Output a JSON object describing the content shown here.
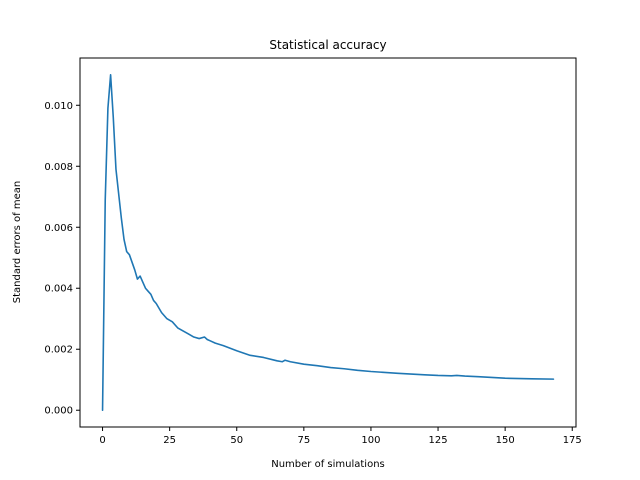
{
  "chart_data": {
    "type": "line",
    "title": "Statistical accuracy",
    "xlabel": "Number of simulations",
    "ylabel": "Standard errors of mean",
    "xlim": [
      -8.4,
      176.4
    ],
    "ylim": [
      -0.00055,
      0.01155
    ],
    "xticks": [
      0,
      25,
      50,
      75,
      100,
      125,
      150,
      175
    ],
    "xtick_labels": [
      "0",
      "25",
      "50",
      "75",
      "100",
      "125",
      "150",
      "175"
    ],
    "yticks": [
      0.0,
      0.002,
      0.004,
      0.006,
      0.008,
      0.01
    ],
    "ytick_labels": [
      "0.000",
      "0.002",
      "0.004",
      "0.006",
      "0.008",
      "0.010"
    ],
    "grid": false,
    "line_color": "#1f77b4",
    "series": [
      {
        "x": [
          0,
          1,
          2,
          3,
          4,
          5,
          6,
          7,
          8,
          9,
          10,
          12,
          13,
          14,
          15,
          16,
          17,
          18,
          19,
          20,
          22,
          24,
          26,
          28,
          30,
          32,
          34,
          36,
          38,
          39,
          40,
          42,
          45,
          50,
          55,
          60,
          65,
          67,
          68,
          70,
          75,
          80,
          85,
          90,
          95,
          100,
          110,
          120,
          125,
          130,
          132,
          135,
          140,
          150,
          160,
          168
        ],
        "y": [
          0.0,
          0.0069,
          0.0099,
          0.011,
          0.0096,
          0.0079,
          0.0071,
          0.0063,
          0.0056,
          0.0052,
          0.0051,
          0.0046,
          0.0043,
          0.0044,
          0.0042,
          0.004,
          0.0039,
          0.0038,
          0.0036,
          0.0035,
          0.0032,
          0.003,
          0.0029,
          0.0027,
          0.0026,
          0.0025,
          0.0024,
          0.00235,
          0.0024,
          0.00232,
          0.00228,
          0.0022,
          0.00212,
          0.00195,
          0.0018,
          0.00173,
          0.00162,
          0.00159,
          0.00164,
          0.00159,
          0.00151,
          0.00146,
          0.0014,
          0.00136,
          0.00131,
          0.00127,
          0.00121,
          0.00116,
          0.00114,
          0.00113,
          0.00114,
          0.00112,
          0.0011,
          0.00105,
          0.00103,
          0.00102
        ]
      }
    ]
  }
}
